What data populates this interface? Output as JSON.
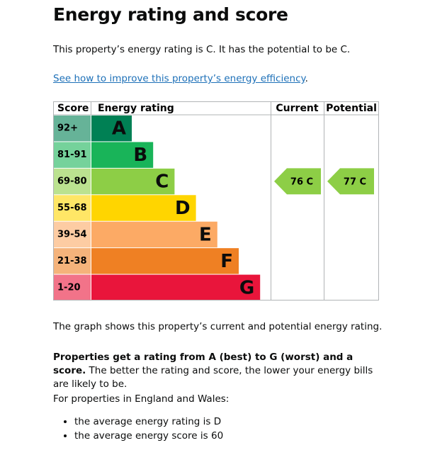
{
  "header": {
    "title": "Energy rating and score"
  },
  "intro": "This property’s energy rating is C. It has the potential to be C.",
  "link": {
    "text": "See how to improve this property’s energy efficiency",
    "after": "."
  },
  "graph": {
    "headers": [
      "Score",
      "Energy rating",
      "Current",
      "Potential"
    ],
    "bands": [
      {
        "score": "92+",
        "letter": "A",
        "color": "#008054",
        "score_color": "#66b398"
      },
      {
        "score": "81-91",
        "letter": "B",
        "color": "#19b459",
        "score_color": "#75d29b"
      },
      {
        "score": "69-80",
        "letter": "C",
        "color": "#8dce46",
        "score_color": "#bbe290"
      },
      {
        "score": "55-68",
        "letter": "D",
        "color": "#ffd500",
        "score_color": "#ffe666"
      },
      {
        "score": "39-54",
        "letter": "E",
        "color": "#fcaa65",
        "score_color": "#fdcca3"
      },
      {
        "score": "21-38",
        "letter": "F",
        "color": "#ef8023",
        "score_color": "#f5b37b"
      },
      {
        "score": "1-20",
        "letter": "G",
        "color": "#e9153b",
        "score_color": "#f27389"
      }
    ],
    "current": "76 C",
    "potential": "77 C"
  },
  "summary": "The graph shows this property’s current and potential energy rating.",
  "explain": {
    "bold": "Properties get a rating from A (best) to G (worst) and a score.",
    "rest": " The better the rating and score, the lower your energy bills are likely to be."
  },
  "averages": {
    "intro": "For properties in England and Wales:",
    "items": [
      "the average energy rating is D",
      "the average energy score is 60"
    ]
  }
}
